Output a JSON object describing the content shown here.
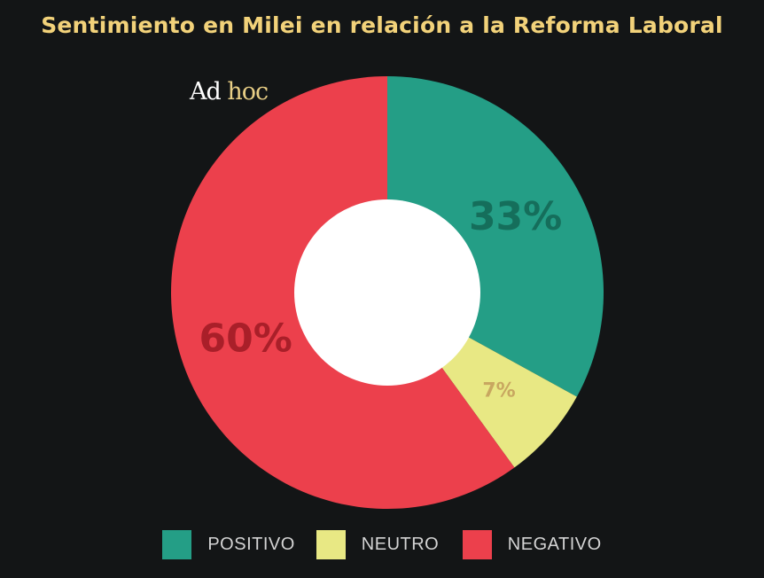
{
  "chart_data": {
    "type": "pie",
    "title": "Sentimiento en Milei en relación a la Reforma Laboral",
    "categories": [
      "POSITIVO",
      "NEUTRO",
      "NEGATIVO"
    ],
    "values": [
      33,
      7,
      60
    ],
    "value_labels": [
      "33%",
      "7%",
      "60%"
    ],
    "colors": [
      "#249e86",
      "#e8e884",
      "#ec404c"
    ],
    "label_colors": [
      "#156e5b",
      "#c8a760",
      "#a91f29"
    ],
    "hole_color": "#ffffff",
    "donut": true,
    "legend_position": "bottom"
  },
  "watermark": {
    "ad": "Ad",
    "hoc": "hoc"
  }
}
